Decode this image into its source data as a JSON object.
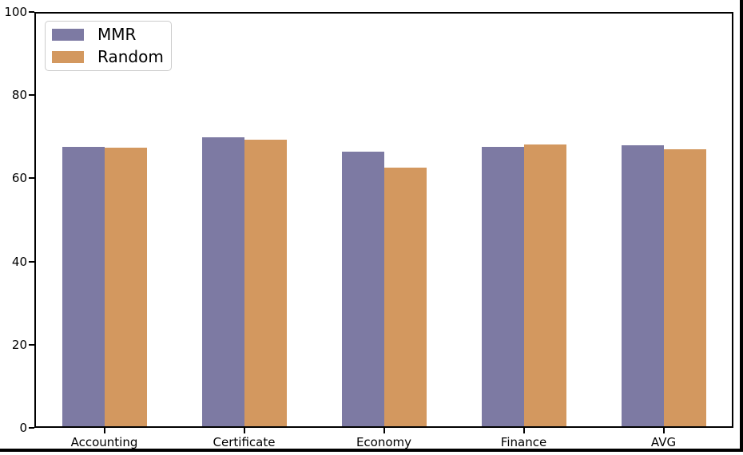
{
  "chart_data": {
    "type": "bar",
    "title": "",
    "xlabel": "",
    "ylabel": "",
    "categories": [
      "Accounting",
      "Certificate",
      "Economy",
      "Finance",
      "AVG"
    ],
    "series": [
      {
        "name": "MMR",
        "color": "#7d7aa3",
        "values": [
          67.6,
          69.8,
          66.5,
          67.5,
          67.9
        ]
      },
      {
        "name": "Random",
        "color": "#d3985f",
        "values": [
          67.3,
          69.3,
          62.5,
          68.2,
          67.0
        ]
      }
    ],
    "ylim": [
      0,
      100
    ],
    "yticks": [
      0,
      20,
      40,
      60,
      80,
      100
    ],
    "grid": false,
    "legend_position": "upper left",
    "bar_group_layout": "side-by-side"
  },
  "colors": {
    "axes": "#000000",
    "legend_border": "#cccccc",
    "background": "#ffffff"
  }
}
